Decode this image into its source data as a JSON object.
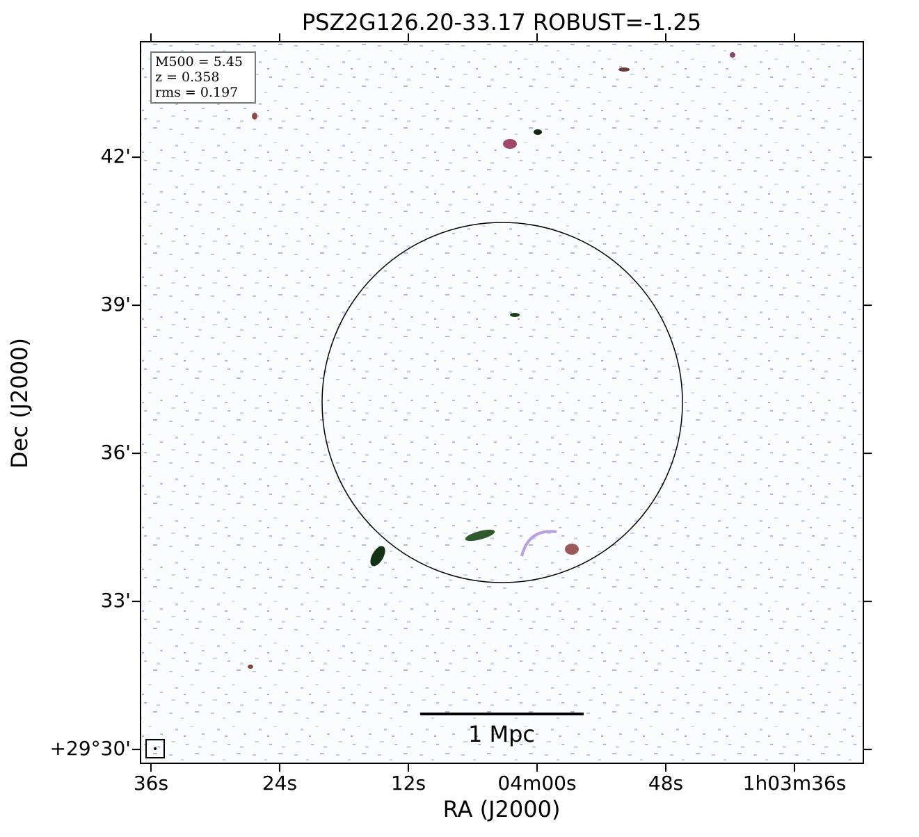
{
  "chart_data": {
    "type": "image",
    "title": "PSZ2G126.20-33.17 ROBUST=-1.25",
    "x_label": "RA (J2000)",
    "y_label": "Dec (J2000)",
    "xlim": [
      96.97,
      29.58
    ],
    "ylim": [
      29.72,
      44.34
    ],
    "xticks": [
      {
        "value": 96,
        "label": "36s"
      },
      {
        "value": 84,
        "label": "24s"
      },
      {
        "value": 72,
        "label": "12s"
      },
      {
        "value": 60,
        "label": "04m00s"
      },
      {
        "value": 48,
        "label": "48s"
      },
      {
        "value": 36,
        "label": "1h03m36s"
      }
    ],
    "yticks": [
      {
        "value": 30,
        "label": "+29°30'"
      },
      {
        "value": 33,
        "label": "33'"
      },
      {
        "value": 36,
        "label": "36'"
      },
      {
        "value": 39,
        "label": "39'"
      },
      {
        "value": 42,
        "label": "42'"
      }
    ],
    "info": [
      "M500 = 5.45",
      "z = 0.358",
      "rms = 0.197"
    ],
    "scale_bar": "1 Mpc"
  }
}
